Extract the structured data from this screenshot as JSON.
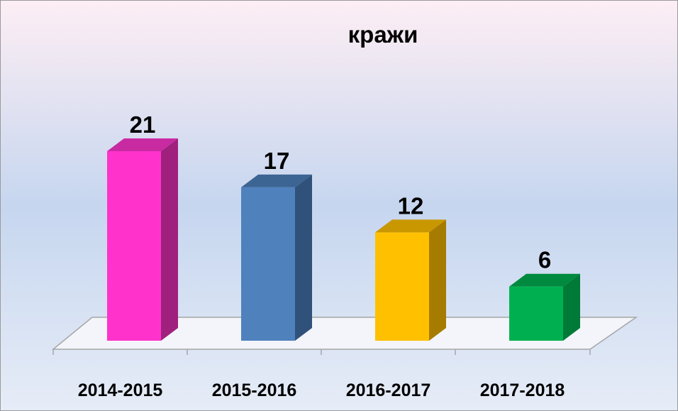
{
  "chart_data": {
    "type": "bar3d",
    "title": "кражи",
    "categories": [
      "2014-2015",
      "2015-2016",
      "2016-2017",
      "2017-2018"
    ],
    "values": [
      21,
      17,
      12,
      6
    ],
    "colors": [
      "#ff33cc",
      "#4f81bd",
      "#ffc000",
      "#00b050"
    ],
    "side_colors": [
      "#a0207e",
      "#30517a",
      "#a67c00",
      "#007a37"
    ],
    "top_colors": [
      "#c82aa2",
      "#3d6594",
      "#c99700",
      "#008a3f"
    ]
  }
}
